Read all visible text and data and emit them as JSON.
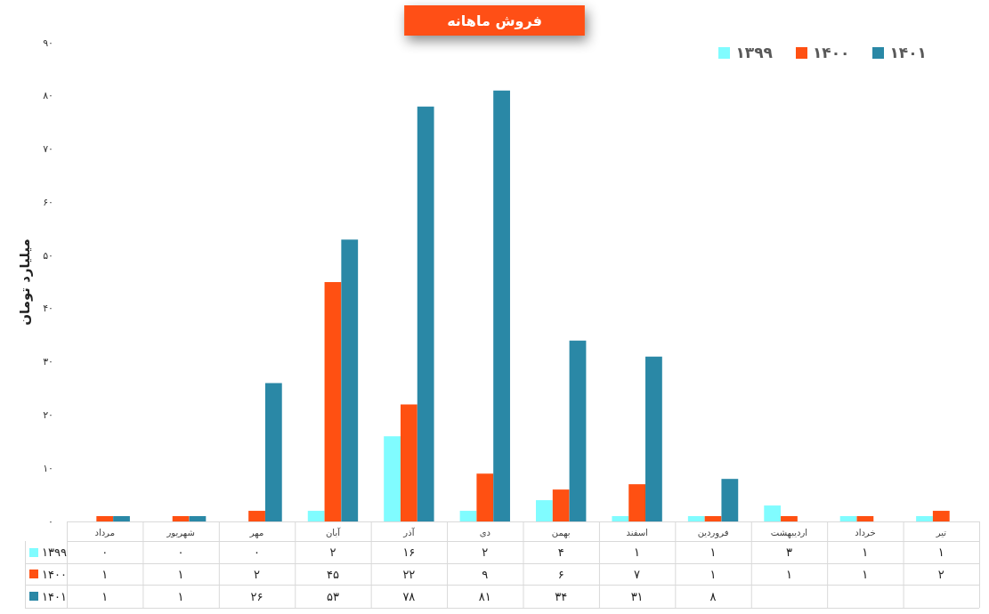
{
  "chart_data": {
    "type": "bar",
    "title": "فروش ماهانه",
    "ylabel": "میلیارد تومان",
    "categories": [
      "مرداد",
      "شهریور",
      "مهر",
      "آبان",
      "آذر",
      "دی",
      "بهمن",
      "اسفند",
      "فروردین",
      "اردیبهشت",
      "خرداد",
      "تیر"
    ],
    "series": [
      {
        "name": "۱۳۹۹",
        "color": "#80fcff",
        "values": [
          0,
          0,
          0,
          2,
          16,
          2,
          4,
          1,
          1,
          3,
          1,
          1
        ],
        "value_labels": [
          "۰",
          "۰",
          "۰",
          "۲",
          "۱۶",
          "۲",
          "۴",
          "۱",
          "۱",
          "۳",
          "۱",
          "۱"
        ]
      },
      {
        "name": "۱۴۰۰",
        "color": "#ff5012",
        "values": [
          1,
          1,
          2,
          45,
          22,
          9,
          6,
          7,
          1,
          1,
          1,
          2
        ],
        "value_labels": [
          "۱",
          "۱",
          "۲",
          "۴۵",
          "۲۲",
          "۹",
          "۶",
          "۷",
          "۱",
          "۱",
          "۱",
          "۲"
        ]
      },
      {
        "name": "۱۴۰۱",
        "color": "#2a88a6",
        "values": [
          1,
          1,
          26,
          53,
          78,
          81,
          34,
          31,
          8,
          null,
          null,
          null
        ],
        "value_labels": [
          "۱",
          "۱",
          "۲۶",
          "۵۳",
          "۷۸",
          "۸۱",
          "۳۴",
          "۳۱",
          "۸",
          null,
          null,
          null
        ]
      }
    ],
    "ylim": [
      0,
      90
    ],
    "yticks": [
      {
        "value": 0,
        "label": "۰"
      },
      {
        "value": 10,
        "label": "۱۰"
      },
      {
        "value": 20,
        "label": "۲۰"
      },
      {
        "value": 30,
        "label": "۳۰"
      },
      {
        "value": 40,
        "label": "۴۰"
      },
      {
        "value": 50,
        "label": "۵۰"
      },
      {
        "value": 60,
        "label": "۶۰"
      },
      {
        "value": 70,
        "label": "۷۰"
      },
      {
        "value": 80,
        "label": "۸۰"
      },
      {
        "value": 90,
        "label": "۹۰"
      }
    ],
    "legend": "top right"
  }
}
